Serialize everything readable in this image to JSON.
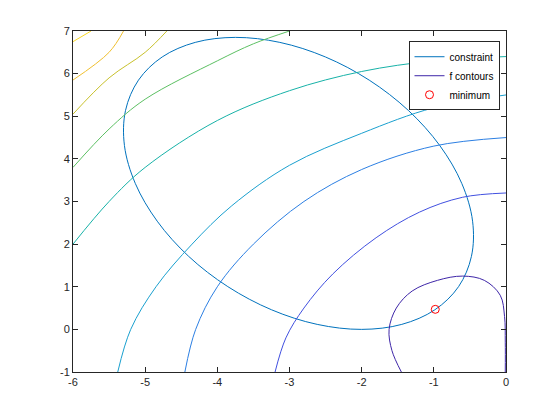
{
  "chart_data": {
    "type": "contour",
    "xlim": [
      -6,
      0
    ],
    "ylim": [
      -1,
      7
    ],
    "xticks": [
      -6,
      -5,
      -4,
      -3,
      -2,
      -1,
      0
    ],
    "yticks": [
      -1,
      0,
      1,
      2,
      3,
      4,
      5,
      6,
      7
    ],
    "grid": false,
    "legend": "upper right",
    "series": [
      {
        "name": "constraint",
        "type": "line",
        "color": "#0072bd",
        "line_style": "solid",
        "x": [
          -0.613,
          -0.917,
          -1.354,
          -1.895,
          -2.502,
          -3.134,
          -3.75,
          -4.306,
          -4.764,
          -5.093,
          -5.272,
          -5.287,
          -5.137,
          -4.833,
          -4.397,
          -3.855,
          -3.248,
          -2.616,
          -2.0,
          -1.444,
          -0.986,
          -0.657,
          -0.479,
          -0.463,
          -0.613
        ],
        "y": [
          3.425,
          4.312,
          5.138,
          5.847,
          6.391,
          6.733,
          6.85,
          6.733,
          6.391,
          5.847,
          5.138,
          4.312,
          3.425,
          2.538,
          1.713,
          1.003,
          0.459,
          0.117,
          0.0,
          0.117,
          0.459,
          1.003,
          1.713,
          2.538,
          3.425
        ]
      },
      {
        "name": "f contours",
        "type": "contour",
        "line_style": "solid",
        "lines": [
          {
            "color": "#3e26a8",
            "x": [
              -1.45,
              -1.58,
              -1.62,
              -1.52,
              -1.3,
              -0.95,
              -0.6,
              -0.3,
              -0.08,
              -0.02,
              -0.01,
              -0.01
            ],
            "y": [
              -1.0,
              -0.5,
              0.0,
              0.5,
              0.9,
              1.15,
              1.25,
              1.15,
              0.8,
              0.3,
              -0.3,
              -1.0
            ]
          },
          {
            "color": "#4150e0",
            "x": [
              -3.2,
              -3.05,
              -2.8,
              -2.4,
              -1.8,
              -1.2,
              -0.6,
              0.0
            ],
            "y": [
              -1.0,
              -0.2,
              0.5,
              1.3,
              2.15,
              2.75,
              3.1,
              3.2
            ]
          },
          {
            "color": "#2c7fe3",
            "x": [
              -4.45,
              -4.3,
              -4.0,
              -3.5,
              -2.8,
              -2.0,
              -1.0,
              0.0
            ],
            "y": [
              -1.0,
              0.0,
              1.0,
              2.0,
              3.0,
              3.75,
              4.3,
              4.5
            ]
          },
          {
            "color": "#1aa0cf",
            "x": [
              -5.38,
              -5.2,
              -4.85,
              -4.35,
              -3.8,
              -3.0,
              -2.0,
              -1.0,
              0.0
            ],
            "y": [
              -1.0,
              0.0,
              1.0,
              2.0,
              2.9,
              3.85,
              4.6,
              5.2,
              5.5
            ]
          },
          {
            "color": "#17b2a8",
            "x": [
              -6.0,
              -5.5,
              -5.0,
              -4.0,
              -3.0,
              -2.0,
              -1.0,
              0.0
            ],
            "y": [
              2.0,
              3.0,
              3.8,
              4.9,
              5.6,
              6.05,
              6.3,
              6.4
            ]
          },
          {
            "color": "#5cc063",
            "x": [
              -6.0,
              -5.5,
              -5.0,
              -4.0,
              -3.5,
              -3.0
            ],
            "y": [
              3.8,
              4.7,
              5.4,
              6.3,
              6.7,
              7.0
            ]
          },
          {
            "color": "#c8c12b",
            "x": [
              -6.0,
              -5.5,
              -5.0,
              -4.7
            ],
            "y": [
              5.05,
              5.9,
              6.5,
              7.0
            ]
          },
          {
            "color": "#f0c030",
            "x": [
              -6.0,
              -5.5,
              -5.3
            ],
            "y": [
              5.85,
              6.5,
              7.0
            ]
          },
          {
            "color": "#f9d823",
            "x": [
              -6.0,
              -5.75
            ],
            "y": [
              6.75,
              7.0
            ]
          }
        ]
      },
      {
        "name": "minimum",
        "type": "scatter",
        "marker": "circle-open",
        "color": "#ff0000",
        "x": [
          -0.98
        ],
        "y": [
          0.47
        ]
      }
    ]
  }
}
